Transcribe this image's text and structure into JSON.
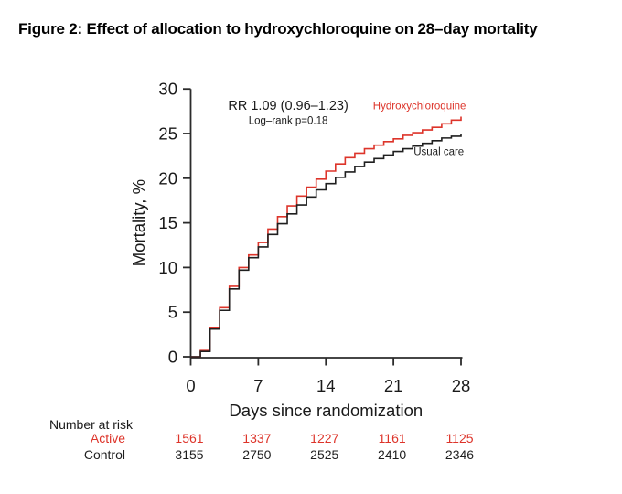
{
  "title": "Figure 2: Effect of allocation to hydroxychloroquine on 28–day mortality",
  "colors": {
    "active": "#dd342a",
    "control": "#1f1f1f",
    "axis": "#2b2b2b",
    "background": "#ffffff"
  },
  "chart_data": {
    "type": "line",
    "variant": "kaplan-meier-step",
    "title": "",
    "xlabel": "Days since randomization",
    "ylabel": "Mortality, %",
    "xlim": [
      0,
      28
    ],
    "ylim": [
      0,
      30
    ],
    "xticks": [
      0,
      7,
      14,
      21,
      28
    ],
    "yticks": [
      0,
      5,
      10,
      15,
      20,
      25,
      30
    ],
    "grid": false,
    "legend_position": "inline-labels-near-curves",
    "annotations": [
      {
        "text": "RR 1.09 (0.96–1.23)",
        "x": 10.1,
        "y": 27.65,
        "font_px": 14.5
      },
      {
        "text": "Log–rank p=0.18",
        "x": 10.1,
        "y": 26.1,
        "font_px": 11.5
      }
    ],
    "x": [
      0,
      1,
      2,
      3,
      4,
      5,
      6,
      7,
      8,
      9,
      10,
      11,
      12,
      13,
      14,
      15,
      16,
      17,
      18,
      19,
      20,
      21,
      22,
      23,
      24,
      25,
      26,
      27,
      28
    ],
    "series": [
      {
        "name": "Hydroxychloroquine",
        "color": "#dd342a",
        "label_x": 23.7,
        "label_y": 27.7,
        "values": [
          0,
          0.7,
          3.3,
          5.5,
          7.9,
          10.0,
          11.4,
          12.8,
          14.3,
          15.7,
          16.9,
          18.0,
          19.0,
          19.9,
          20.8,
          21.6,
          22.3,
          22.8,
          23.3,
          23.7,
          24.1,
          24.4,
          24.8,
          25.1,
          25.4,
          25.7,
          26.1,
          26.5,
          26.9
        ]
      },
      {
        "name": "Usual care",
        "color": "#1f1f1f",
        "label_x": 25.7,
        "label_y": 22.6,
        "values": [
          0,
          0.6,
          3.1,
          5.2,
          7.6,
          9.7,
          11.1,
          12.3,
          13.7,
          14.9,
          16.0,
          17.0,
          17.9,
          18.7,
          19.4,
          20.1,
          20.7,
          21.3,
          21.8,
          22.2,
          22.6,
          23.0,
          23.3,
          23.6,
          23.9,
          24.2,
          24.5,
          24.7,
          24.9
        ]
      }
    ]
  },
  "risk_table": {
    "heading": "Number at risk",
    "columns_days": [
      0,
      7,
      14,
      21,
      28
    ],
    "rows": [
      {
        "label": "Active",
        "color": "#dd342a",
        "values": [
          "1561",
          "1337",
          "1227",
          "1161",
          "1125"
        ]
      },
      {
        "label": "Control",
        "color": "#1f1f1f",
        "values": [
          "3155",
          "2750",
          "2525",
          "2410",
          "2346"
        ]
      }
    ]
  }
}
